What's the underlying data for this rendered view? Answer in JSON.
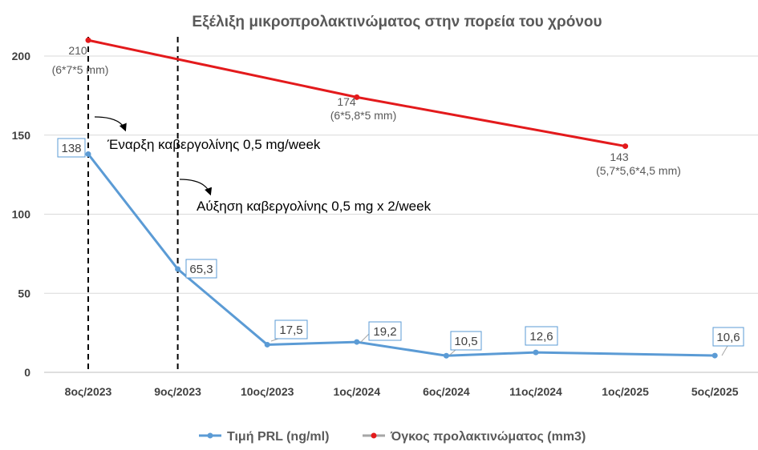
{
  "chart_data": {
    "type": "line",
    "title": "Εξέλιξη μικροπρολακτινώματος στην πορεία του χρόνου",
    "categories": [
      "8ος/2023",
      "9ος/2023",
      "10ος/2023",
      "1ος/2024",
      "6ος/2024",
      "11ος/2024",
      "1ος/2025",
      "5ος/2025"
    ],
    "ylim": [
      0,
      210
    ],
    "yticks": [
      0,
      50,
      100,
      150,
      200
    ],
    "grid": true,
    "legend_position": "bottom",
    "series": [
      {
        "name": "Τιμή PRL (ng/ml)",
        "color": "#5b9bd5",
        "x": [
          0,
          1,
          2,
          3,
          4,
          5,
          7
        ],
        "values": [
          138,
          65.3,
          17.5,
          19.2,
          10.5,
          12.6,
          10.6
        ],
        "labels": [
          "138",
          "65,3",
          "17,5",
          "19,2",
          "10,5",
          "12,6",
          "10,6"
        ]
      },
      {
        "name": "Όγκος προλακτινώματος (mm3)",
        "color": "#e31a1c",
        "x": [
          0,
          3,
          6
        ],
        "values": [
          210,
          174,
          143
        ],
        "labels": [
          "210",
          "174",
          "143"
        ],
        "sublabels": [
          "(6*7*5 mm)",
          "(6*5,8*5 mm)",
          "(5,7*5,6*4,5 mm)"
        ]
      }
    ],
    "annotations": [
      {
        "text": "Έναρξη καβεργολίνης 0,5 mg/week",
        "x": 0
      },
      {
        "text": "Αύξηση καβεργολίνης 0,5 mg x 2/week",
        "x": 1
      }
    ]
  }
}
